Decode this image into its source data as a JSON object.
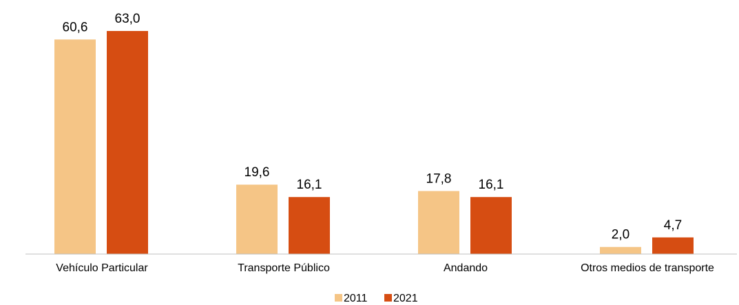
{
  "chart_data": {
    "type": "bar",
    "categories": [
      "Vehículo Particular",
      "Transporte Público",
      "Andando",
      "Otros medios de transporte"
    ],
    "series": [
      {
        "name": "2011",
        "color": "#f5c586",
        "values": [
          60.6,
          19.6,
          17.8,
          2.0
        ],
        "value_labels": [
          "60,6",
          "19,6",
          "17,8",
          "2,0"
        ]
      },
      {
        "name": "2021",
        "color": "#d64d12",
        "values": [
          63.0,
          16.1,
          16.1,
          4.7
        ],
        "value_labels": [
          "63,0",
          "16,1",
          "16,1",
          "4,7"
        ]
      }
    ],
    "ylim": [
      0,
      70
    ],
    "legend": "bottom"
  }
}
